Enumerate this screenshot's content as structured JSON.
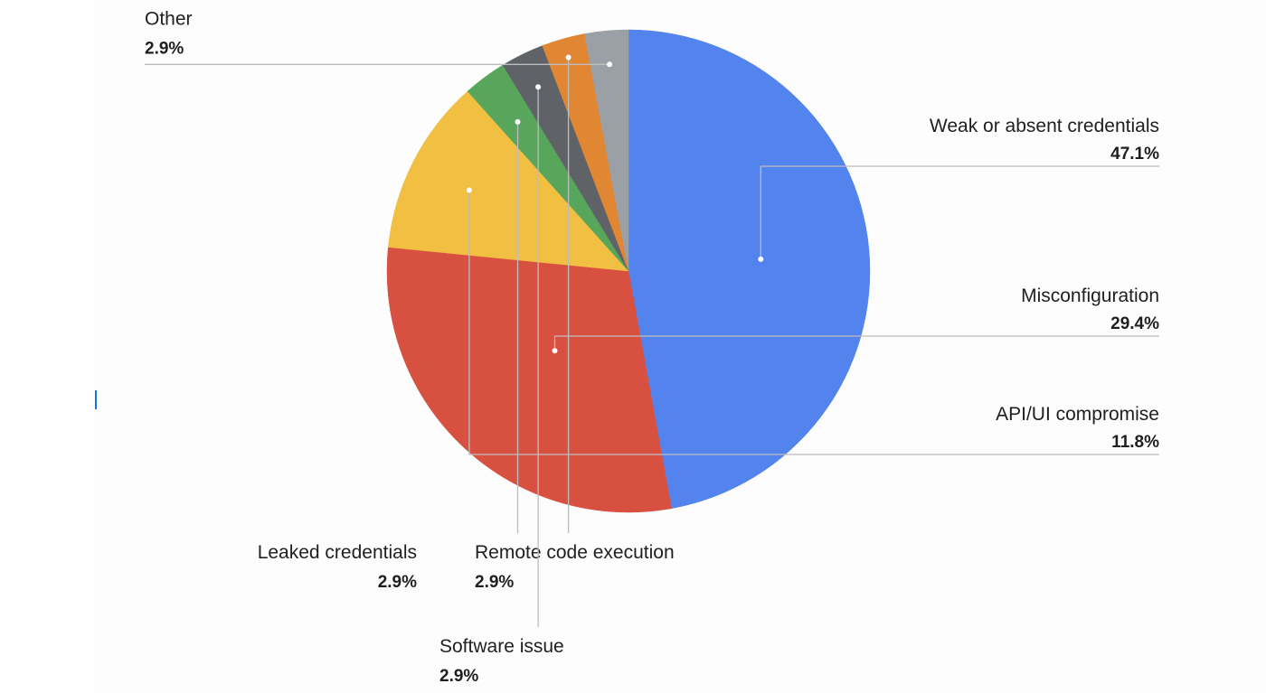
{
  "chart_data": {
    "type": "pie",
    "title": "",
    "start_angle_deg": 90,
    "direction": "clockwise",
    "slices": [
      {
        "name": "Weak or absent credentials",
        "value": 47.1,
        "label": "47.1%",
        "color": "#5383ec"
      },
      {
        "name": "Misconfiguration",
        "value": 29.4,
        "label": "29.4%",
        "color": "#d85140"
      },
      {
        "name": "API/UI compromise",
        "value": 11.8,
        "label": "11.8%",
        "color": "#f1bf42"
      },
      {
        "name": "Remote code execution",
        "value": 2.9,
        "label": "2.9%",
        "color": "#58a55c"
      },
      {
        "name": "Software issue",
        "value": 2.9,
        "label": "2.9%",
        "color": "#5f6368"
      },
      {
        "name": "Leaked credentials",
        "value": 2.9,
        "label": "2.9%",
        "color": "#e18632"
      },
      {
        "name": "Other",
        "value": 2.9,
        "label": "2.9%",
        "color": "#9aa0a6"
      }
    ],
    "legend": "none"
  }
}
